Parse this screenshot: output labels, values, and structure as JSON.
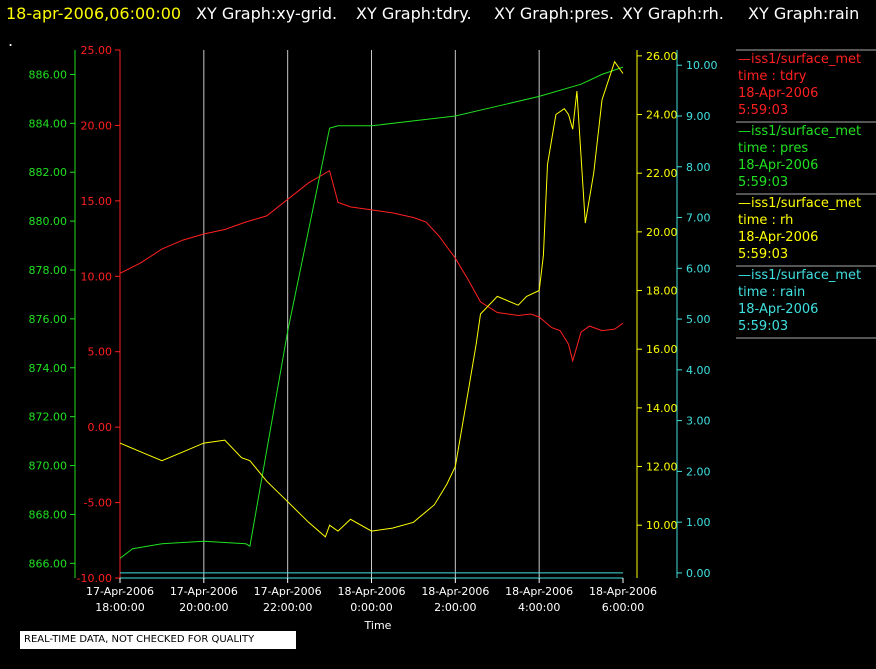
{
  "header": {
    "datetime": "18-apr-2006,06:00:00",
    "graphs": [
      "XY Graph:xy-grid.",
      "XY Graph:tdry.",
      "XY Graph:pres.",
      "XY Graph:rh.",
      "XY Graph:rain"
    ],
    "dot": "."
  },
  "notice": "REAL-TIME DATA, NOT CHECKED FOR QUALITY",
  "colors": {
    "header_time": "#ffff00",
    "tdry": "#ff2020",
    "pres": "#20e020",
    "rh": "#ffff00",
    "rain": "#40e0e0",
    "grid": "#c8c8c8",
    "text": "#ffffff"
  },
  "legend": [
    {
      "name": "—iss1/surface_met",
      "field": "time : tdry",
      "date": "18-Apr-2006",
      "time": "5:59:03",
      "color": "#ff2020"
    },
    {
      "name": "—iss1/surface_met",
      "field": "time : pres",
      "date": "18-Apr-2006",
      "time": "5:59:03",
      "color": "#20e020"
    },
    {
      "name": "—iss1/surface_met",
      "field": "time : rh",
      "date": "18-Apr-2006",
      "time": "5:59:03",
      "color": "#ffff00"
    },
    {
      "name": "—iss1/surface_met",
      "field": "time : rain",
      "date": "18-Apr-2006",
      "time": "5:59:03",
      "color": "#40e0e0"
    }
  ],
  "chart_data": {
    "type": "line",
    "xlabel": "Time",
    "x_range": [
      "2006-04-17 18:00",
      "2006-04-18 06:00"
    ],
    "x_ticks": [
      {
        "date": "17-Apr-2006",
        "time": "18:00:00",
        "hour": 0
      },
      {
        "date": "17-Apr-2006",
        "time": "20:00:00",
        "hour": 2
      },
      {
        "date": "17-Apr-2006",
        "time": "22:00:00",
        "hour": 4
      },
      {
        "date": "18-Apr-2006",
        "time": "0:00:00",
        "hour": 6
      },
      {
        "date": "18-Apr-2006",
        "time": "2:00:00",
        "hour": 8
      },
      {
        "date": "18-Apr-2006",
        "time": "4:00:00",
        "hour": 10
      },
      {
        "date": "18-Apr-2006",
        "time": "6:00:00",
        "hour": 12
      }
    ],
    "axes": {
      "tdry": {
        "range": [
          -10,
          25
        ],
        "ticks": [
          "-10.00",
          "-5.00",
          "0.00",
          "5.00",
          "10.00",
          "15.00",
          "20.00",
          "25.00"
        ]
      },
      "pres": {
        "range": [
          865.4,
          887.0
        ],
        "ticks": [
          "866.00",
          "868.00",
          "870.00",
          "872.00",
          "874.00",
          "876.00",
          "878.00",
          "880.00",
          "882.00",
          "884.00",
          "886.00"
        ]
      },
      "rh": {
        "range": [
          8.2,
          26.2
        ],
        "ticks": [
          "10.00",
          "12.00",
          "14.00",
          "16.00",
          "18.00",
          "20.00",
          "22.00",
          "24.00",
          "26.00"
        ]
      },
      "rain": {
        "range": [
          -0.1,
          10.3
        ],
        "ticks": [
          "0.00",
          "1.00",
          "2.00",
          "3.00",
          "4.00",
          "5.00",
          "6.00",
          "7.00",
          "8.00",
          "9.00",
          "10.00"
        ]
      }
    },
    "series": [
      {
        "name": "time : tdry",
        "axis": "tdry",
        "color": "#ff2020",
        "x": [
          0,
          0.5,
          1,
          1.5,
          2,
          2.5,
          3,
          3.5,
          4,
          4.5,
          5,
          5.2,
          5.5,
          6,
          6.5,
          7,
          7.3,
          7.6,
          8,
          8.3,
          8.6,
          9,
          9.5,
          9.8,
          10,
          10.3,
          10.5,
          10.7,
          10.8,
          11,
          11.2,
          11.5,
          11.8,
          12
        ],
        "y": [
          10.2,
          10.9,
          11.8,
          12.4,
          12.8,
          13.1,
          13.6,
          14.0,
          15.1,
          16.2,
          17.0,
          14.9,
          14.6,
          14.4,
          14.2,
          13.9,
          13.6,
          12.7,
          11.2,
          9.8,
          8.3,
          7.6,
          7.4,
          7.5,
          7.3,
          6.6,
          6.4,
          5.5,
          4.4,
          6.3,
          6.7,
          6.4,
          6.5,
          6.9
        ]
      },
      {
        "name": "time : pres",
        "axis": "pres",
        "color": "#20e020",
        "x": [
          0,
          0.3,
          1,
          2,
          3,
          3.1,
          4,
          5.0,
          5.2,
          6,
          7,
          8,
          9,
          10,
          11,
          11.5,
          12
        ],
        "y": [
          866.2,
          866.6,
          866.8,
          866.9,
          866.8,
          866.7,
          875.5,
          883.8,
          883.9,
          883.9,
          884.1,
          884.3,
          884.7,
          885.1,
          885.6,
          886.0,
          886.3
        ]
      },
      {
        "name": "time : rh",
        "axis": "rh",
        "color": "#ffff00",
        "x": [
          0,
          0.5,
          1,
          1.5,
          2,
          2.5,
          2.9,
          3.1,
          3.5,
          4,
          4.5,
          4.9,
          5.0,
          5.2,
          5.5,
          6,
          6.5,
          7,
          7.5,
          7.8,
          8.0,
          8.3,
          8.5,
          8.6,
          9,
          9.5,
          9.7,
          10,
          10.1,
          10.2,
          10.4,
          10.6,
          10.7,
          10.8,
          10.9,
          11.1,
          11.3,
          11.5,
          11.8,
          12
        ],
        "y": [
          12.8,
          12.5,
          12.2,
          12.5,
          12.8,
          12.9,
          12.3,
          12.2,
          11.5,
          10.8,
          10.1,
          9.6,
          10.0,
          9.8,
          10.2,
          9.8,
          9.9,
          10.1,
          10.7,
          11.4,
          12.0,
          14.5,
          16.2,
          17.2,
          17.8,
          17.5,
          17.8,
          18.0,
          19.2,
          22.3,
          24.0,
          24.2,
          24.0,
          23.5,
          24.8,
          20.3,
          22.0,
          24.5,
          25.8,
          25.4
        ]
      },
      {
        "name": "time : rain",
        "axis": "rain",
        "color": "#40e0e0",
        "x": [
          0,
          12
        ],
        "y": [
          0.0,
          0.0
        ]
      }
    ]
  }
}
